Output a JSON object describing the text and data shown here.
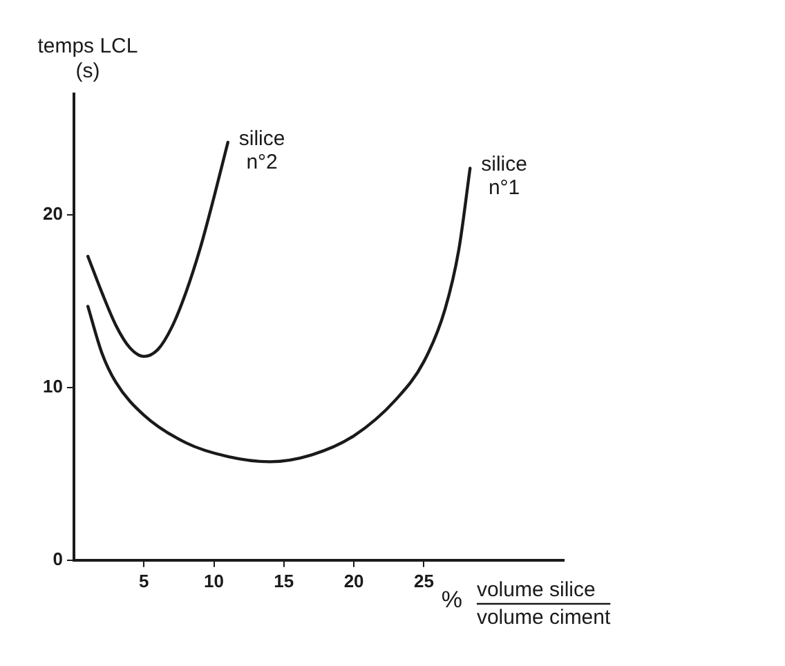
{
  "chart_data": {
    "type": "line",
    "ylabel": "temps LCL\n(s)",
    "xlabel": "%",
    "annotations": [
      "volume silice",
      "volume ciment"
    ],
    "xlim": [
      0,
      35
    ],
    "ylim": [
      0,
      27
    ],
    "xticks": [
      5,
      10,
      15,
      20,
      25
    ],
    "yticks": [
      0,
      10,
      20
    ],
    "grid": false,
    "legend": false,
    "marker": "none",
    "line_style": "solid",
    "series": [
      {
        "name": "silice n°2",
        "color": "#1a1a1a",
        "x": [
          1,
          2,
          3,
          4,
          5,
          6,
          7,
          8,
          9,
          10,
          11
        ],
        "values": [
          17.6,
          15.5,
          13.6,
          12.3,
          11.8,
          12.2,
          13.5,
          15.5,
          18,
          21,
          24.2
        ]
      },
      {
        "name": "silice n°1",
        "color": "#1a1a1a",
        "x": [
          1,
          2,
          3,
          5,
          8,
          11,
          14,
          17,
          20,
          23,
          25,
          26.5,
          27.5,
          28.3
        ],
        "values": [
          14.7,
          12,
          10.3,
          8.4,
          6.8,
          6,
          5.7,
          6.1,
          7.2,
          9.3,
          11.5,
          14.5,
          18,
          22.7
        ]
      }
    ]
  }
}
